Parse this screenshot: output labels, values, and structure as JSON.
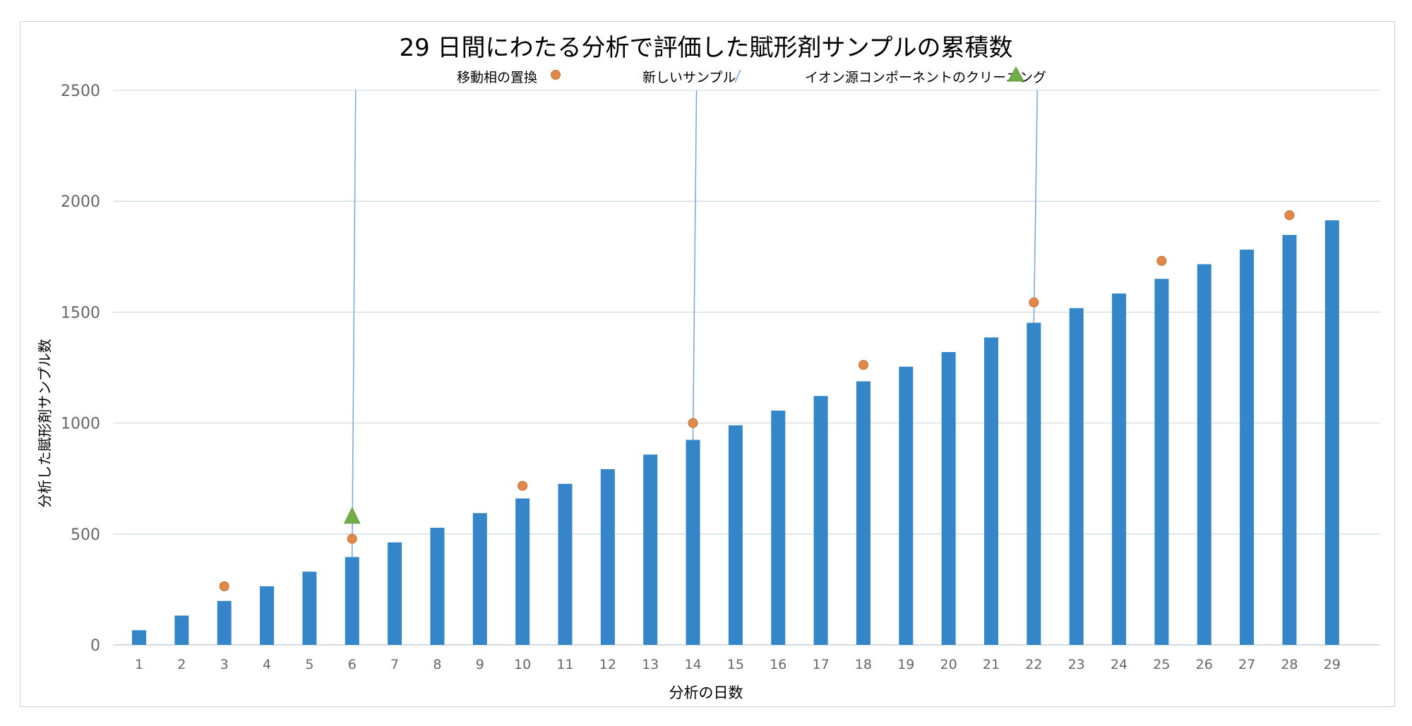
{
  "chart_data": {
    "type": "bar",
    "title": "29 日間にわたる分析で評価した賦形剤サンプルの累積数",
    "xlabel": "分析の日数",
    "ylabel": "分析した賦形剤サンプル数",
    "categories": [
      "1",
      "2",
      "3",
      "4",
      "5",
      "6",
      "7",
      "8",
      "9",
      "10",
      "11",
      "12",
      "13",
      "14",
      "15",
      "16",
      "17",
      "18",
      "19",
      "20",
      "21",
      "22",
      "23",
      "24",
      "25",
      "26",
      "27",
      "28",
      "29"
    ],
    "values": [
      66,
      132,
      198,
      264,
      330,
      396,
      462,
      528,
      594,
      660,
      726,
      792,
      858,
      924,
      990,
      1056,
      1122,
      1188,
      1254,
      1320,
      1386,
      1452,
      1518,
      1584,
      1650,
      1716,
      1782,
      1848,
      1914
    ],
    "ylim": [
      0,
      2500
    ],
    "yticks": [
      "0",
      "500",
      "1000",
      "1500",
      "2000",
      "2500"
    ],
    "grid": true,
    "legend_position": "top",
    "bar_color": "#3585c9",
    "series": [
      {
        "name": "移動相の置換",
        "marker": "circle",
        "color": "#e0894b",
        "points": [
          {
            "x": 3,
            "y": 264
          },
          {
            "x": 6,
            "y": 478
          },
          {
            "x": 10,
            "y": 717
          },
          {
            "x": 14,
            "y": 1000
          },
          {
            "x": 18,
            "y": 1262
          },
          {
            "x": 22,
            "y": 1544
          },
          {
            "x": 25,
            "y": 1731
          },
          {
            "x": 28,
            "y": 1937
          }
        ]
      },
      {
        "name": "新しいサンプル",
        "marker": "line",
        "color": "#7aa6d8",
        "x": [
          6,
          14,
          22
        ]
      },
      {
        "name": "イオン源コンポーネントのクリーニング",
        "marker": "triangle",
        "color": "#70ad47",
        "points": [
          {
            "x": 6,
            "y": 580
          }
        ]
      }
    ]
  }
}
